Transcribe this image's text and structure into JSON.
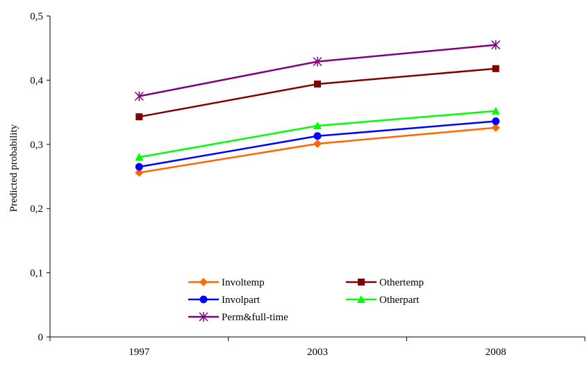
{
  "chart_data": {
    "type": "line",
    "title": "",
    "xlabel": "",
    "ylabel": "Predicted probability",
    "categories": [
      "1997",
      "2003",
      "2008"
    ],
    "ylim": [
      0,
      0.5
    ],
    "y_ticks": [
      "0",
      "0,1",
      "0,2",
      "0,3",
      "0,4",
      "0,5"
    ],
    "grid": false,
    "legend_position": "bottom-center",
    "series": [
      {
        "name": "Involtemp",
        "values": [
          0.256,
          0.301,
          0.326
        ],
        "color": "#FF6600",
        "marker": "diamond"
      },
      {
        "name": "Othertemp",
        "values": [
          0.343,
          0.394,
          0.418
        ],
        "color": "#800000",
        "marker": "square"
      },
      {
        "name": "Involpart",
        "values": [
          0.265,
          0.313,
          0.336
        ],
        "color": "#0000FF",
        "marker": "circle"
      },
      {
        "name": "Otherpart",
        "values": [
          0.28,
          0.329,
          0.352
        ],
        "color": "#00FF00",
        "marker": "triangle"
      },
      {
        "name": "Perm&full-time",
        "values": [
          0.375,
          0.429,
          0.455
        ],
        "color": "#800080",
        "marker": "star"
      }
    ]
  }
}
